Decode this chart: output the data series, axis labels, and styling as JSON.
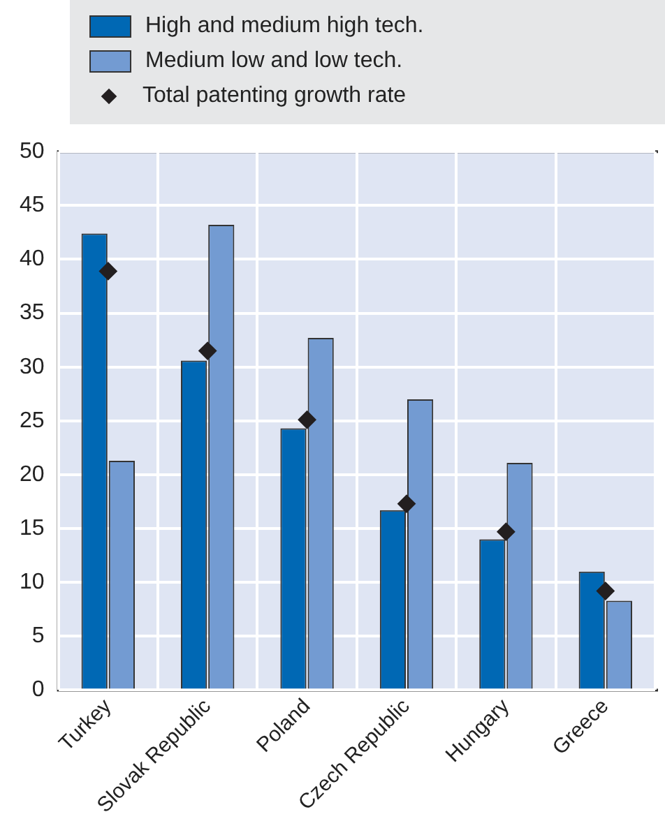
{
  "chart_data": {
    "type": "bar",
    "categories": [
      "Turkey",
      "Slovak Republic",
      "Poland",
      "Czech Republic",
      "Hungary",
      "Greece"
    ],
    "series": [
      {
        "name": "High and medium high tech.",
        "color": "#0068b4",
        "values": [
          42.4,
          30.6,
          24.3,
          16.7,
          14.0,
          11.0
        ]
      },
      {
        "name": "Medium low and low tech.",
        "color": "#739bd2",
        "values": [
          21.3,
          43.2,
          32.7,
          27.0,
          21.1,
          8.3
        ]
      },
      {
        "name": "Total patenting growth rate",
        "type": "scatter",
        "color": "#231f20",
        "x": [
          "Turkey",
          "Slovak Republic",
          "Poland",
          "Czech Republic",
          "Hungary",
          "Greece"
        ],
        "values": [
          38.9,
          31.5,
          25.1,
          17.3,
          14.7,
          9.2
        ]
      }
    ],
    "ylim": [
      0,
      50
    ],
    "yticks": [
      0,
      5,
      10,
      15,
      20,
      25,
      30,
      35,
      40,
      45,
      50
    ],
    "grid": true,
    "legend": "top",
    "marker": "diamond"
  }
}
